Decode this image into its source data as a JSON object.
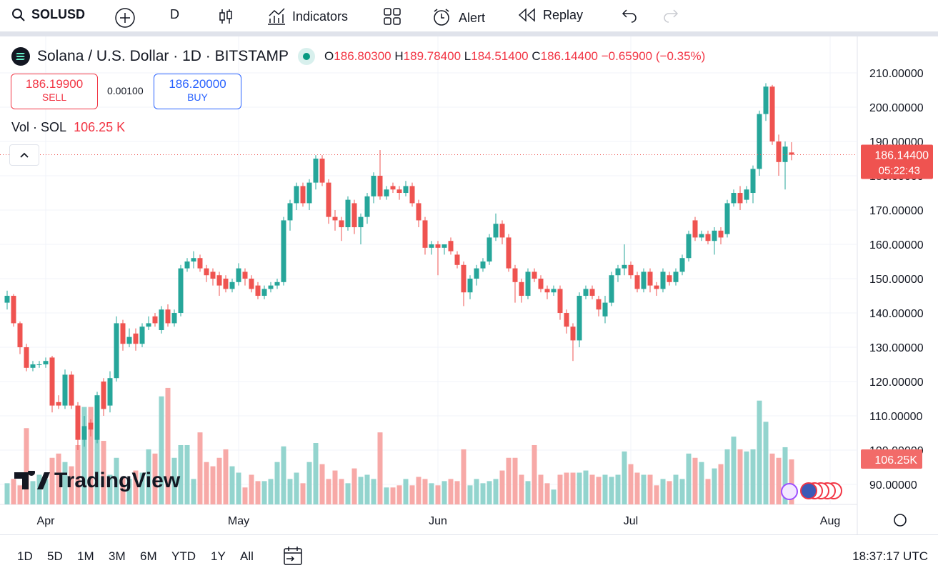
{
  "toolbar": {
    "symbol": "SOLUSD",
    "interval": "D",
    "indicators": "Indicators",
    "alert": "Alert",
    "replay": "Replay"
  },
  "header": {
    "title": "Solana / U.S. Dollar · 1D · BITSTAMP",
    "o_key": "O",
    "o": "186.80300",
    "h_key": "H",
    "h": "189.78400",
    "l_key": "L",
    "l": "184.51400",
    "c_key": "C",
    "c": "186.14400",
    "change": "−0.65900",
    "change_pct": "(−0.35%)"
  },
  "trade": {
    "sell_price": "186.19900",
    "sell": "SELL",
    "spread": "0.00100",
    "buy_price": "186.20000",
    "buy": "BUY"
  },
  "volume_legend": {
    "name": "Vol · SOL",
    "value": "106.25 K"
  },
  "logo": "TradingView",
  "chart_data": {
    "type": "candlestick",
    "xlim": [
      -1.11,
      132.22
    ],
    "ylim": [
      84.17,
      220.42
    ],
    "xticks": [
      {
        "value": 6,
        "label": "Apr"
      },
      {
        "value": 36,
        "label": "May"
      },
      {
        "value": 67,
        "label": "Jun"
      },
      {
        "value": 97,
        "label": "Jul"
      },
      {
        "value": 128,
        "label": "Aug"
      }
    ],
    "yticks": [
      {
        "value": 90,
        "label": "90.00000"
      },
      {
        "value": 100,
        "label": "100.00000"
      },
      {
        "value": 110,
        "label": "110.00000"
      },
      {
        "value": 120,
        "label": "120.00000"
      },
      {
        "value": 130,
        "label": "130.00000"
      },
      {
        "value": 140,
        "label": "140.00000"
      },
      {
        "value": 150,
        "label": "150.00000"
      },
      {
        "value": 160,
        "label": "160.00000"
      },
      {
        "value": 170,
        "label": "170.00000"
      },
      {
        "value": 180,
        "label": "180.00000"
      },
      {
        "value": 190,
        "label": "190.00000"
      },
      {
        "value": 200,
        "label": "200.00000"
      },
      {
        "value": 210,
        "label": "210.00000"
      }
    ],
    "grid": true,
    "up_color": "#26a69a",
    "down_color": "#ef5350",
    "volume_up_color": "#93d4ce",
    "volume_down_color": "#f7a9a7",
    "price_label": "186.14400",
    "countdown": "05:22:43",
    "volume_label": "106.25K",
    "open": [
      143,
      145,
      137,
      130,
      124,
      125,
      125,
      127,
      114,
      113,
      122,
      113,
      103,
      108,
      103,
      120,
      113,
      121,
      137,
      131,
      134,
      131,
      136,
      139,
      135,
      141,
      137,
      140,
      153,
      155,
      156,
      153,
      152,
      151,
      150,
      147,
      149,
      152,
      150,
      148,
      145,
      147,
      148,
      149,
      167,
      172,
      177,
      172,
      178,
      185,
      178,
      168,
      167,
      165,
      172,
      165,
      168,
      174,
      180,
      174,
      177,
      176,
      175,
      177,
      172,
      167,
      159,
      160,
      159,
      161,
      157,
      154,
      146,
      150,
      153,
      155,
      162,
      166,
      162,
      153,
      149,
      145,
      152,
      150,
      147,
      146,
      147,
      140,
      136,
      132,
      145,
      147,
      144,
      139,
      143,
      151,
      153,
      154,
      151,
      147,
      152,
      148,
      147,
      151,
      149,
      152,
      156,
      167,
      162,
      163,
      161,
      164,
      163,
      172,
      175,
      173,
      175,
      182,
      198,
      206,
      190,
      184,
      186.803
    ],
    "high": [
      146.5,
      145.5,
      137.5,
      131,
      126,
      126,
      127,
      127.5,
      116,
      123.5,
      123,
      114,
      110,
      109,
      117,
      121,
      123,
      139,
      138,
      135.5,
      135.5,
      137,
      139,
      140,
      142,
      142.5,
      141,
      154,
      156,
      158,
      157,
      154,
      153,
      152,
      151,
      150,
      154.5,
      153,
      151,
      149,
      148,
      149,
      150,
      168,
      173,
      178,
      178,
      179,
      186,
      186,
      179,
      170,
      168,
      174,
      173,
      169,
      175,
      181,
      187.5,
      177,
      178,
      177,
      178.5,
      178,
      173,
      168,
      161,
      161,
      160,
      162,
      158,
      155,
      151,
      154,
      156,
      163,
      169,
      167,
      163,
      154,
      150,
      153,
      153,
      151,
      148,
      148,
      148,
      141,
      137,
      146,
      148,
      148,
      145,
      145,
      152,
      154,
      160,
      155,
      152,
      153,
      153,
      149,
      153,
      152,
      153,
      157,
      164,
      168,
      164,
      164,
      165,
      165,
      173,
      176,
      177,
      177,
      183,
      199,
      207,
      206.5,
      192,
      190,
      189.784
    ],
    "low": [
      141,
      136,
      128,
      123,
      123,
      124,
      124,
      111,
      112,
      112,
      112,
      100,
      101,
      104,
      102,
      110,
      111,
      120,
      129,
      130,
      129,
      130,
      135,
      136,
      134,
      136,
      136,
      139,
      152,
      153,
      152,
      149,
      148,
      145,
      146,
      146,
      148,
      148,
      146,
      144,
      144,
      146,
      147,
      148,
      164,
      170,
      171,
      170,
      176,
      177,
      166,
      164,
      161,
      164,
      163,
      160,
      166,
      172,
      173,
      173,
      175,
      173,
      174,
      171,
      165,
      157,
      157,
      151,
      157,
      157,
      153,
      142,
      144,
      148,
      152,
      154,
      161,
      160,
      152,
      143,
      143,
      144,
      149,
      146,
      144,
      145,
      138,
      134,
      126,
      130,
      144,
      144,
      139,
      137,
      142,
      149,
      151,
      150,
      146,
      146,
      146,
      145,
      146,
      148,
      148,
      151,
      155,
      161,
      161,
      160,
      157,
      160,
      162,
      171,
      170,
      172,
      172,
      180,
      196,
      189,
      180,
      176,
      184.514
    ],
    "close": [
      145,
      137,
      130,
      124,
      125,
      125,
      126,
      113,
      113,
      122,
      113,
      103,
      107,
      106,
      116,
      112,
      121,
      137,
      131,
      133,
      131,
      136,
      137,
      137,
      141,
      137,
      140,
      153,
      155,
      156,
      153,
      151,
      150,
      148,
      147,
      149,
      153,
      150,
      147,
      145,
      147,
      148,
      149,
      167,
      172,
      177,
      172,
      178,
      185,
      178,
      168,
      167,
      165,
      173,
      165,
      168,
      174,
      180,
      174,
      176,
      176,
      175,
      177,
      172,
      167,
      159,
      160,
      159,
      160,
      158,
      154,
      146,
      150,
      153,
      155,
      162,
      166,
      162,
      153,
      149,
      145,
      152,
      150,
      147,
      146,
      147,
      140,
      136,
      132,
      145,
      147,
      145,
      141,
      143,
      151,
      153,
      154,
      151,
      147,
      152,
      148,
      147,
      152,
      149,
      152,
      156,
      163,
      162,
      163,
      161,
      164,
      162,
      172,
      175,
      172,
      176,
      182,
      198,
      206,
      190,
      184,
      188.5,
      186.144
    ],
    "volume": [
      50,
      60,
      45,
      180,
      55,
      70,
      60,
      110,
      120,
      100,
      90,
      140,
      230,
      230,
      220,
      150,
      70,
      110,
      65,
      60,
      80,
      75,
      130,
      120,
      255,
      275,
      110,
      140,
      140,
      60,
      170,
      100,
      90,
      110,
      130,
      90,
      75,
      40,
      70,
      55,
      55,
      60,
      100,
      137,
      60,
      75,
      50,
      100,
      145,
      95,
      60,
      80,
      60,
      50,
      85,
      65,
      70,
      60,
      170,
      40,
      40,
      45,
      60,
      45,
      65,
      60,
      50,
      45,
      55,
      60,
      55,
      130,
      45,
      60,
      50,
      55,
      60,
      80,
      110,
      110,
      70,
      55,
      140,
      70,
      50,
      35,
      70,
      75,
      75,
      75,
      80,
      70,
      65,
      70,
      65,
      70,
      125,
      95,
      75,
      70,
      70,
      45,
      60,
      55,
      70,
      60,
      120,
      110,
      100,
      60,
      85,
      95,
      130,
      160,
      130,
      125,
      130,
      245,
      195,
      120,
      110,
      135,
      106.25
    ]
  },
  "range_buttons": [
    "1D",
    "5D",
    "1M",
    "3M",
    "6M",
    "YTD",
    "1Y",
    "All"
  ],
  "clock": "18:37:17 UTC"
}
